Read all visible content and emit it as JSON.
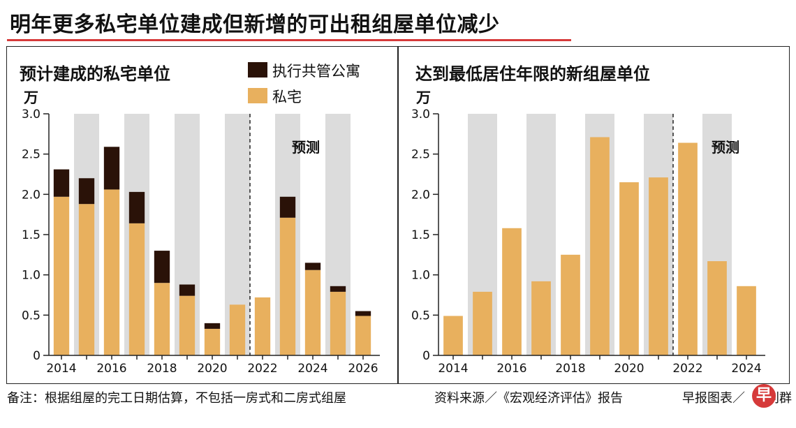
{
  "title": "明年更多私宅单位建成但新增的可出租组屋单位减少",
  "colors": {
    "accent": "#d63a3a",
    "private": "#e8b05e",
    "ec": "#2a1208",
    "band": "#dcdcdc"
  },
  "left_panel": {
    "subtitle": "预计建成的私宅单位",
    "unit": "万",
    "legend": [
      {
        "label": "执行共管公寓",
        "color": "#2a1208"
      },
      {
        "label": "私宅",
        "color": "#e8b05e"
      }
    ]
  },
  "right_panel": {
    "subtitle": "达到最低居住年限的新组屋单位",
    "unit": "万"
  },
  "footer": {
    "note": "备注：根据组屋的完工日期估算，不包括一房式和二房式组屋",
    "source": "资料来源／《宏观经济评估》报告",
    "credit": "早报图表／",
    "credit_tail": "刘群",
    "logo_char": "早"
  },
  "chart_data": [
    {
      "type": "bar",
      "stacked": true,
      "title": "预计建成的私宅单位",
      "ylabel": "万",
      "ylim": [
        0,
        3.0
      ],
      "yticks": [
        "0",
        "0.5",
        "1.0",
        "1.5",
        "2.0",
        "2.5",
        "3.0"
      ],
      "categories": [
        "2014",
        "2015",
        "2016",
        "2017",
        "2018",
        "2019",
        "2020",
        "2021",
        "2022",
        "2023",
        "2024",
        "2025",
        "2026"
      ],
      "xtick_labels": [
        "2014",
        "",
        "2016",
        "",
        "2018",
        "",
        "2020",
        "",
        "2022",
        "",
        "2024",
        "",
        "2026"
      ],
      "series": [
        {
          "name": "私宅",
          "values": [
            1.97,
            1.88,
            2.06,
            1.64,
            0.9,
            0.74,
            0.33,
            0.63,
            0.72,
            1.71,
            1.06,
            0.79,
            0.49
          ]
        },
        {
          "name": "执行共管公寓",
          "values": [
            0.34,
            0.32,
            0.53,
            0.39,
            0.4,
            0.14,
            0.07,
            0.0,
            0.0,
            0.26,
            0.09,
            0.07,
            0.06
          ]
        }
      ],
      "forecast_from_index": 8,
      "forecast_label": "预测"
    },
    {
      "type": "bar",
      "title": "达到最低居住年限的新组屋单位",
      "ylabel": "万",
      "ylim": [
        0,
        3.0
      ],
      "yticks": [
        "0",
        "0.5",
        "1.0",
        "1.5",
        "2.0",
        "2.5",
        "3.0"
      ],
      "categories": [
        "2014",
        "2015",
        "2016",
        "2017",
        "2018",
        "2019",
        "2020",
        "2021",
        "2022",
        "2023",
        "2024"
      ],
      "xtick_labels": [
        "2014",
        "",
        "2016",
        "",
        "2018",
        "",
        "2020",
        "",
        "2022",
        "",
        "2024"
      ],
      "values": [
        0.49,
        0.79,
        1.58,
        0.92,
        1.25,
        2.71,
        2.15,
        2.21,
        2.64,
        1.17,
        0.86
      ],
      "forecast_from_index": 8,
      "forecast_label": "预测"
    }
  ]
}
